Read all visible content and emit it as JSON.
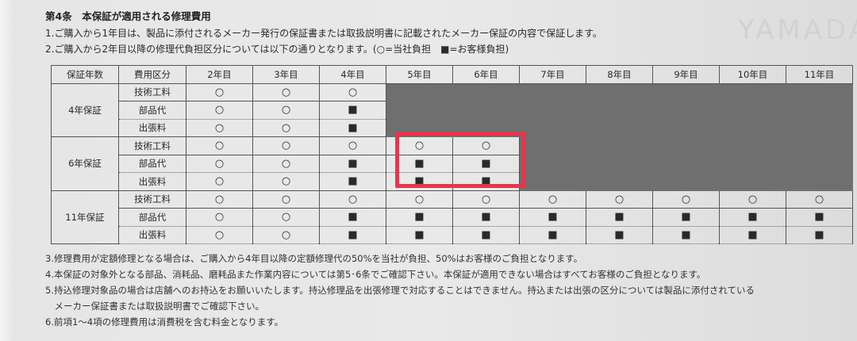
{
  "title": "第4条　本保証が適用される修理費用",
  "line1": "1.ご購入から1年目は、製品に添付されるメーカー発行の保証書または取扱説明書に記載されたメーカー保証の内容で保証します。",
  "line2": "2.ご購入から2年目以降の修理代負担区分については以下の通りとなります。(○=当社負担　■=お客様負担)",
  "watermark": "YAMADA",
  "table": {
    "headers": [
      "保証年数",
      "費用区分",
      "2年目",
      "3年目",
      "4年目",
      "5年目",
      "6年目",
      "7年目",
      "8年目",
      "9年目",
      "10年目",
      "11年目"
    ],
    "groups": [
      {
        "name": "4年保証",
        "rows": [
          {
            "type": "技術工料",
            "cells": [
              "○",
              "○",
              "○"
            ]
          },
          {
            "type": "部品代",
            "cells": [
              "○",
              "○",
              "■"
            ]
          },
          {
            "type": "出張料",
            "cells": [
              "○",
              "○",
              "■"
            ]
          }
        ]
      },
      {
        "name": "6年保証",
        "rows": [
          {
            "type": "技術工料",
            "cells": [
              "○",
              "○",
              "○",
              "○",
              "○"
            ]
          },
          {
            "type": "部品代",
            "cells": [
              "○",
              "○",
              "■",
              "■",
              "■"
            ]
          },
          {
            "type": "出張料",
            "cells": [
              "○",
              "○",
              "■",
              "■",
              "■"
            ]
          }
        ]
      },
      {
        "name": "11年保証",
        "rows": [
          {
            "type": "技術工料",
            "cells": [
              "○",
              "○",
              "○",
              "○",
              "○",
              "○",
              "○",
              "○",
              "○",
              "○"
            ]
          },
          {
            "type": "部品代",
            "cells": [
              "○",
              "○",
              "■",
              "■",
              "■",
              "■",
              "■",
              "■",
              "■",
              "■"
            ]
          },
          {
            "type": "出張料",
            "cells": [
              "○",
              "○",
              "■",
              "■",
              "■",
              "■",
              "■",
              "■",
              "■",
              "■"
            ]
          }
        ]
      }
    ],
    "highlight_color": "#e4364f",
    "not_applicable_color": "#6f6f6f"
  },
  "notes": [
    "3.修理費用が定額修理となる場合は、ご購入から4年目以降の定額修理代の50%を当社が負担、50%はお客様のご負担となります。",
    "4.本保証の対象外となる部品、消耗品、磨耗品また作業内容については第5･6条でご確認下さい。本保証が適用できない場合はすべてお客様のご負担となります。",
    "5.持込修理対象品の場合は店舗へのお持込をお願いいたします。持込修理品を出張修理で対応することはできません。持込または出張の区分については製品に添付されている",
    "　メーカー保証書または取扱説明書でご確認下さい。",
    "6.前項1～4項の修理費用は消費税を含む料金となります。"
  ]
}
